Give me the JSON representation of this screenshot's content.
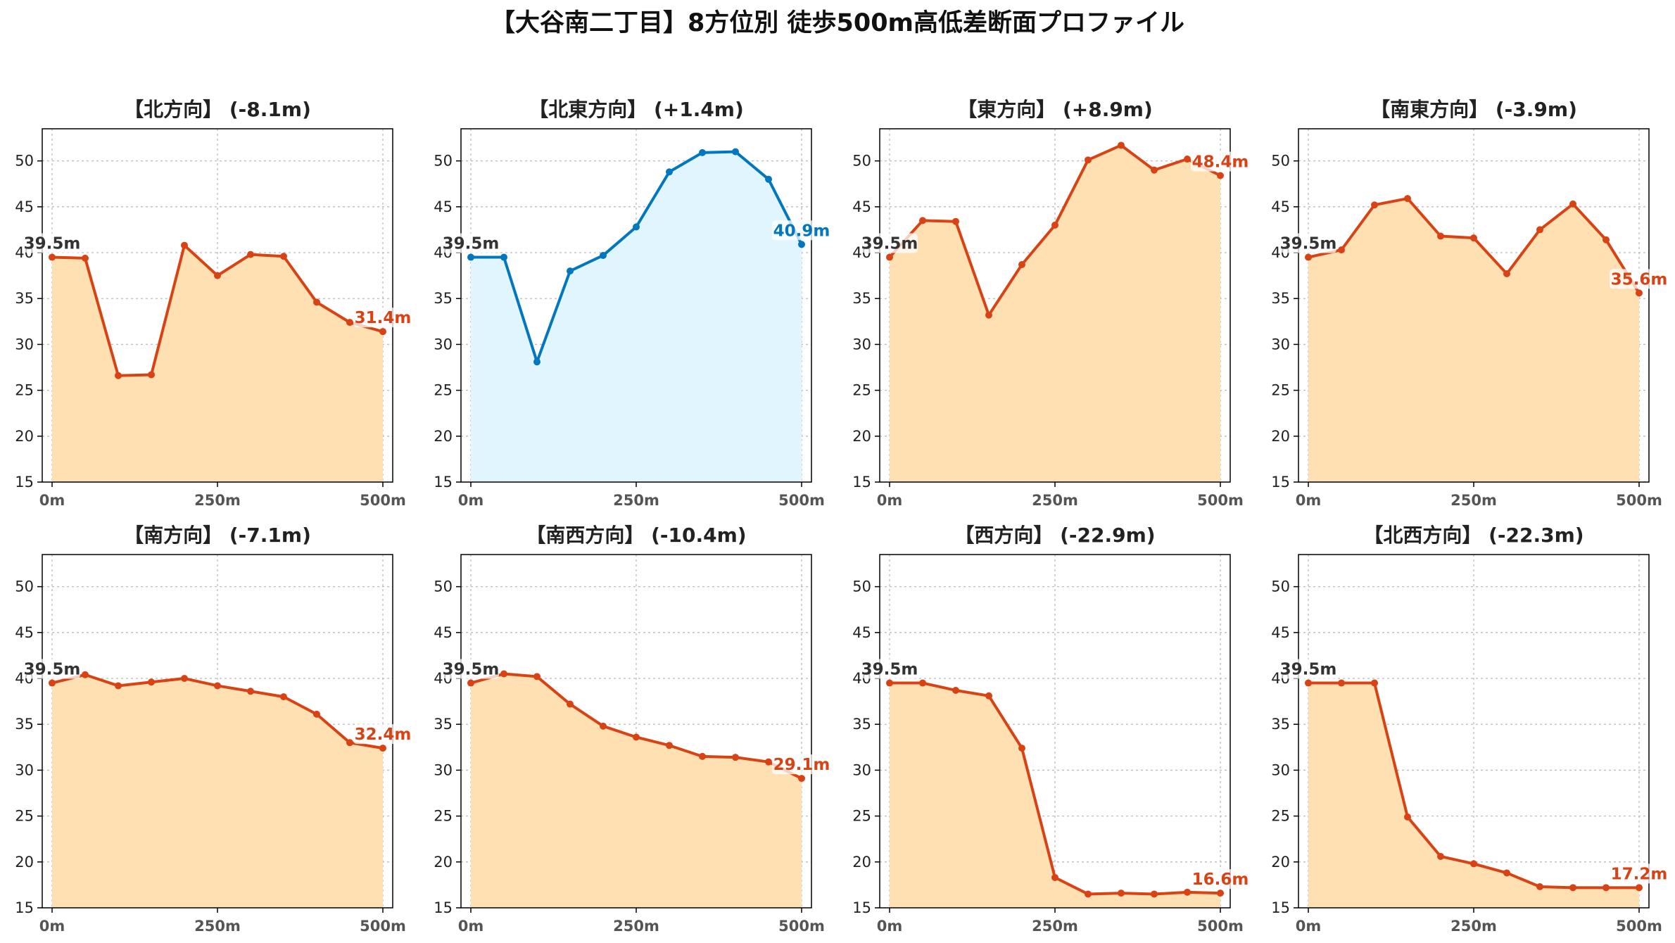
{
  "title": "【大谷南二丁目】8方位別 徒歩500m高低差断面プロファイル",
  "chart_data": [
    {
      "type": "area",
      "title": "【北方向】 (-8.1m)",
      "x": [
        0,
        50,
        100,
        150,
        200,
        250,
        300,
        350,
        400,
        450,
        500
      ],
      "values": [
        39.5,
        39.4,
        26.6,
        26.7,
        40.8,
        37.5,
        39.8,
        39.6,
        34.6,
        32.4,
        31.4
      ],
      "xticks": [
        "0m",
        "250m",
        "500m"
      ],
      "yticks": [
        "15",
        "20",
        "25",
        "30",
        "35",
        "40",
        "45",
        "50"
      ],
      "ylim": [
        15,
        53.5
      ],
      "start_label": "39.5m",
      "end_label": "31.4m",
      "line_color": "#d84315",
      "fill_color": "#ffe0b2",
      "grid": true
    },
    {
      "type": "area",
      "title": "【北東方向】 (+1.4m)",
      "x": [
        0,
        50,
        100,
        150,
        200,
        250,
        300,
        350,
        400,
        450,
        500
      ],
      "values": [
        39.5,
        39.5,
        28.1,
        38.0,
        39.7,
        42.8,
        48.8,
        50.9,
        51.0,
        48.0,
        40.9
      ],
      "xticks": [
        "0m",
        "250m",
        "500m"
      ],
      "yticks": [
        "15",
        "20",
        "25",
        "30",
        "35",
        "40",
        "45",
        "50"
      ],
      "ylim": [
        15,
        53.5
      ],
      "start_label": "39.5m",
      "end_label": "40.9m",
      "line_color": "#0277bd",
      "fill_color": "#e1f5fe",
      "grid": true
    },
    {
      "type": "area",
      "title": "【東方向】 (+8.9m)",
      "x": [
        0,
        50,
        100,
        150,
        200,
        250,
        300,
        350,
        400,
        450,
        500
      ],
      "values": [
        39.5,
        43.5,
        43.4,
        33.2,
        38.7,
        43.0,
        50.1,
        51.7,
        49.0,
        50.2,
        48.4
      ],
      "xticks": [
        "0m",
        "250m",
        "500m"
      ],
      "yticks": [
        "15",
        "20",
        "25",
        "30",
        "35",
        "40",
        "45",
        "50"
      ],
      "ylim": [
        15,
        53.5
      ],
      "start_label": "39.5m",
      "end_label": "48.4m",
      "line_color": "#d84315",
      "fill_color": "#ffe0b2",
      "grid": true
    },
    {
      "type": "area",
      "title": "【南東方向】 (-3.9m)",
      "x": [
        0,
        50,
        100,
        150,
        200,
        250,
        300,
        350,
        400,
        450,
        500
      ],
      "values": [
        39.5,
        40.3,
        45.2,
        45.9,
        41.8,
        41.6,
        37.7,
        42.5,
        45.3,
        41.4,
        35.6
      ],
      "xticks": [
        "0m",
        "250m",
        "500m"
      ],
      "yticks": [
        "15",
        "20",
        "25",
        "30",
        "35",
        "40",
        "45",
        "50"
      ],
      "ylim": [
        15,
        53.5
      ],
      "start_label": "39.5m",
      "end_label": "35.6m",
      "line_color": "#d84315",
      "fill_color": "#ffe0b2",
      "grid": true
    },
    {
      "type": "area",
      "title": "【南方向】 (-7.1m)",
      "x": [
        0,
        50,
        100,
        150,
        200,
        250,
        300,
        350,
        400,
        450,
        500
      ],
      "values": [
        39.5,
        40.4,
        39.2,
        39.6,
        40.0,
        39.2,
        38.6,
        38.0,
        36.1,
        33.0,
        32.4
      ],
      "xticks": [
        "0m",
        "250m",
        "500m"
      ],
      "yticks": [
        "15",
        "20",
        "25",
        "30",
        "35",
        "40",
        "45",
        "50"
      ],
      "ylim": [
        15,
        53.5
      ],
      "start_label": "39.5m",
      "end_label": "32.4m",
      "line_color": "#d84315",
      "fill_color": "#ffe0b2",
      "grid": true
    },
    {
      "type": "area",
      "title": "【南西方向】 (-10.4m)",
      "x": [
        0,
        50,
        100,
        150,
        200,
        250,
        300,
        350,
        400,
        450,
        500
      ],
      "values": [
        39.5,
        40.5,
        40.2,
        37.2,
        34.8,
        33.6,
        32.7,
        31.5,
        31.4,
        30.9,
        29.1
      ],
      "xticks": [
        "0m",
        "250m",
        "500m"
      ],
      "yticks": [
        "15",
        "20",
        "25",
        "30",
        "35",
        "40",
        "45",
        "50"
      ],
      "ylim": [
        15,
        53.5
      ],
      "start_label": "39.5m",
      "end_label": "29.1m",
      "line_color": "#d84315",
      "fill_color": "#ffe0b2",
      "grid": true
    },
    {
      "type": "area",
      "title": "【西方向】 (-22.9m)",
      "x": [
        0,
        50,
        100,
        150,
        200,
        250,
        300,
        350,
        400,
        450,
        500
      ],
      "values": [
        39.5,
        39.5,
        38.7,
        38.1,
        32.4,
        18.3,
        16.5,
        16.6,
        16.5,
        16.7,
        16.6
      ],
      "xticks": [
        "0m",
        "250m",
        "500m"
      ],
      "yticks": [
        "15",
        "20",
        "25",
        "30",
        "35",
        "40",
        "45",
        "50"
      ],
      "ylim": [
        15,
        53.5
      ],
      "start_label": "39.5m",
      "end_label": "16.6m",
      "line_color": "#d84315",
      "fill_color": "#ffe0b2",
      "grid": true
    },
    {
      "type": "area",
      "title": "【北西方向】 (-22.3m)",
      "x": [
        0,
        50,
        100,
        150,
        200,
        250,
        300,
        350,
        400,
        450,
        500
      ],
      "values": [
        39.5,
        39.5,
        39.5,
        24.9,
        20.6,
        19.8,
        18.8,
        17.3,
        17.2,
        17.2,
        17.2
      ],
      "xticks": [
        "0m",
        "250m",
        "500m"
      ],
      "yticks": [
        "15",
        "20",
        "25",
        "30",
        "35",
        "40",
        "45",
        "50"
      ],
      "ylim": [
        15,
        53.5
      ],
      "start_label": "39.5m",
      "end_label": "17.2m",
      "line_color": "#d84315",
      "fill_color": "#ffe0b2",
      "grid": true
    }
  ]
}
